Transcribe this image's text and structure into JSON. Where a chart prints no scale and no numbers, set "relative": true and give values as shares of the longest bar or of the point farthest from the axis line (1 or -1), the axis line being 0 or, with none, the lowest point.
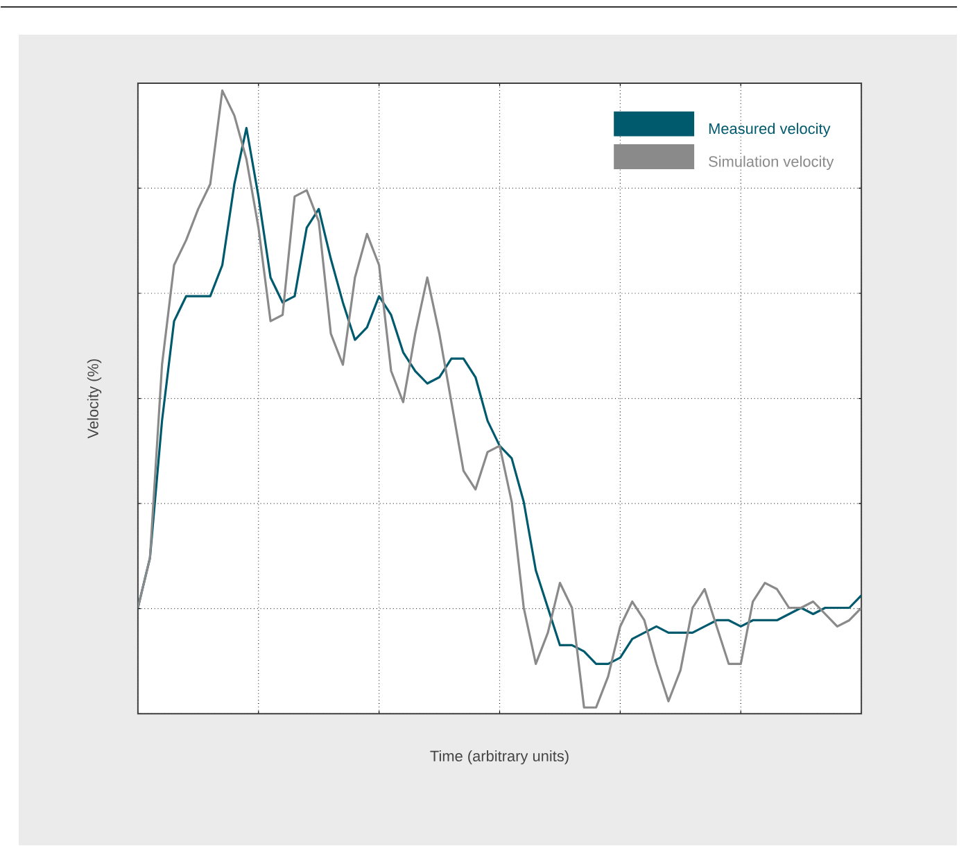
{
  "chart_data": {
    "type": "line",
    "relative": true,
    "xlabel": "Time (arbitrary units)",
    "ylabel": "Velocity (%)",
    "grid": true,
    "legend": "top right",
    "marker": "none",
    "line_style": "solid",
    "categories": [
      null,
      null,
      null,
      null,
      null,
      null,
      null,
      null,
      null,
      null,
      null,
      null,
      null,
      null,
      null,
      null,
      null,
      null,
      null,
      null,
      null,
      null,
      null,
      null,
      null,
      null,
      null,
      null,
      null,
      null,
      null,
      null,
      null,
      null,
      null,
      null,
      null,
      null,
      null,
      null,
      null,
      null,
      null,
      null,
      null,
      null,
      null,
      null,
      null,
      null,
      null,
      null,
      null,
      null,
      null,
      null,
      null,
      null,
      null,
      null,
      null
    ],
    "series": [
      {
        "name": "Measured velocity",
        "color": "#005a6e",
        "values": [
          0.17,
          0.25,
          0.47,
          0.63,
          0.67,
          0.67,
          0.67,
          0.72,
          0.85,
          0.94,
          0.83,
          0.7,
          0.66,
          0.67,
          0.78,
          0.81,
          0.73,
          0.66,
          0.6,
          0.62,
          0.67,
          0.64,
          0.58,
          0.55,
          0.53,
          0.54,
          0.57,
          0.57,
          0.54,
          0.47,
          0.43,
          0.41,
          0.34,
          0.23,
          0.17,
          0.11,
          0.11,
          0.1,
          0.08,
          0.08,
          0.09,
          0.12,
          0.13,
          0.14,
          0.13,
          0.13,
          0.13,
          0.14,
          0.15,
          0.15,
          0.14,
          0.15,
          0.15,
          0.15,
          0.16,
          0.17,
          0.16,
          0.17,
          0.17,
          0.17,
          0.19
        ]
      },
      {
        "name": "Simulation velocity",
        "color": "#8a8a8a",
        "values": [
          0.17,
          0.25,
          0.56,
          0.72,
          0.76,
          0.81,
          0.85,
          1.0,
          0.96,
          0.89,
          0.78,
          0.63,
          0.64,
          0.83,
          0.84,
          0.79,
          0.61,
          0.56,
          0.7,
          0.77,
          0.72,
          0.55,
          0.5,
          0.61,
          0.7,
          0.61,
          0.5,
          0.39,
          0.36,
          0.42,
          0.43,
          0.34,
          0.17,
          0.08,
          0.13,
          0.21,
          0.17,
          0.01,
          0.01,
          0.06,
          0.14,
          0.18,
          0.15,
          0.08,
          0.02,
          0.07,
          0.17,
          0.2,
          0.14,
          0.08,
          0.08,
          0.18,
          0.21,
          0.2,
          0.17,
          0.17,
          0.18,
          0.16,
          0.14,
          0.15,
          0.17
        ]
      }
    ]
  }
}
